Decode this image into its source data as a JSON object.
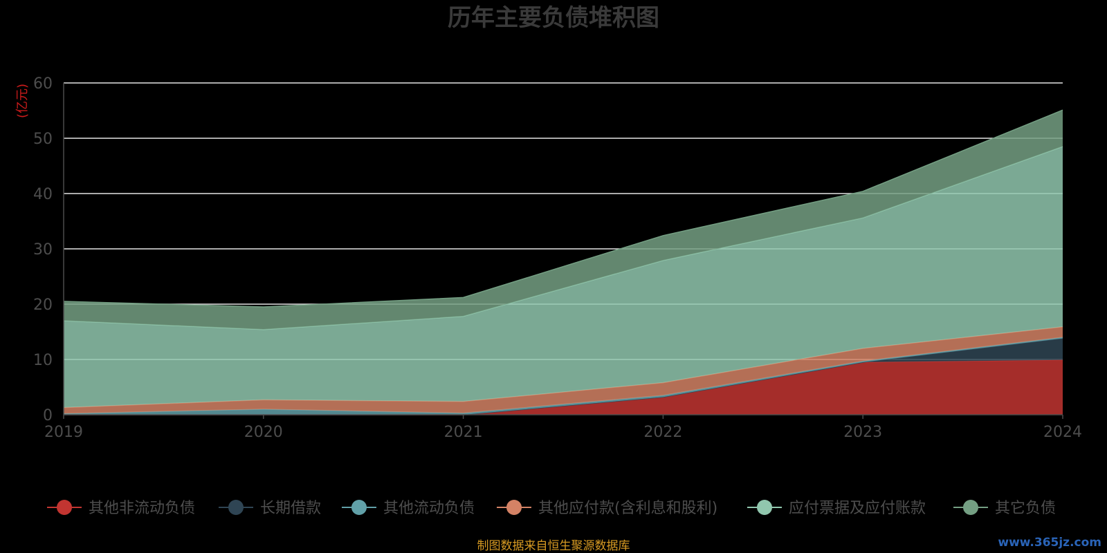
{
  "chart_data": {
    "type": "area",
    "title": "历年主要负债堆积图",
    "ylabel": "(亿元)",
    "xlabel": "",
    "categories": [
      "2019",
      "2020",
      "2021",
      "2022",
      "2023",
      "2024"
    ],
    "ylim": [
      0,
      60
    ],
    "yticks": [
      0,
      10,
      20,
      30,
      40,
      50,
      60
    ],
    "stacked": true,
    "grid": true,
    "legend_position": "bottom",
    "series": [
      {
        "name": "其他非流动负债",
        "color": "#c23531",
        "values": [
          0.0,
          0.0,
          0.0,
          3.2,
          9.5,
          9.9
        ]
      },
      {
        "name": "长期借款",
        "color": "#2f4554",
        "values": [
          0.0,
          0.0,
          0.0,
          0.0,
          0.0,
          3.9
        ]
      },
      {
        "name": "其他流动负债",
        "color": "#61a0a8",
        "values": [
          0.2,
          1.0,
          0.3,
          0.3,
          0.2,
          0.2
        ]
      },
      {
        "name": "其他应付款(含利息和股利)",
        "color": "#d48265",
        "values": [
          1.1,
          1.7,
          2.1,
          2.3,
          2.3,
          1.9
        ]
      },
      {
        "name": "应付票据及应付账款",
        "color": "#91c7ae",
        "values": [
          15.7,
          12.7,
          15.4,
          22.1,
          23.6,
          32.6
        ]
      },
      {
        "name": "其它负债",
        "color": "#749f83",
        "values": [
          3.5,
          4.1,
          3.4,
          4.5,
          4.8,
          6.6
        ]
      }
    ]
  },
  "footer": {
    "source": "制图数据来自恒生聚源数据库",
    "watermark": "www.365jz.com"
  }
}
